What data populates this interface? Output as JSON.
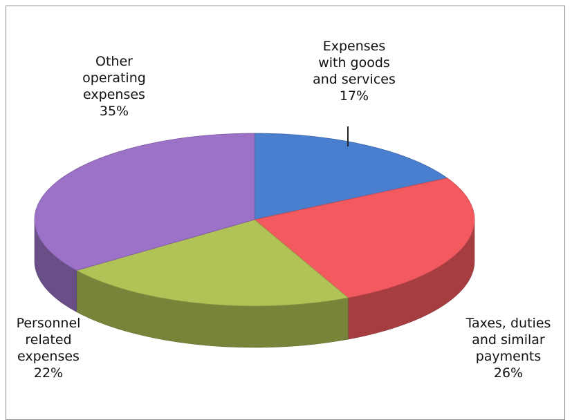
{
  "chart_data": {
    "type": "pie",
    "three_d": true,
    "categories": [
      "Expenses with goods and services",
      "Taxes, duties and similar payments",
      "Personnel related expenses",
      "Other operating expenses"
    ],
    "values": [
      17,
      26,
      22,
      35
    ],
    "colors": [
      "#4a7ecf",
      "#f25a5f",
      "#b1c256",
      "#9b72c7"
    ],
    "labels": [
      {
        "lines": [
          "Expenses",
          "with goods",
          "and services",
          "17%"
        ]
      },
      {
        "lines": [
          "Taxes, duties",
          "and similar",
          "payments",
          "26%"
        ]
      },
      {
        "lines": [
          "Personnel",
          "related",
          "expenses",
          "22%"
        ]
      },
      {
        "lines": [
          "Other",
          "operating",
          "expenses",
          "35%"
        ]
      }
    ]
  }
}
